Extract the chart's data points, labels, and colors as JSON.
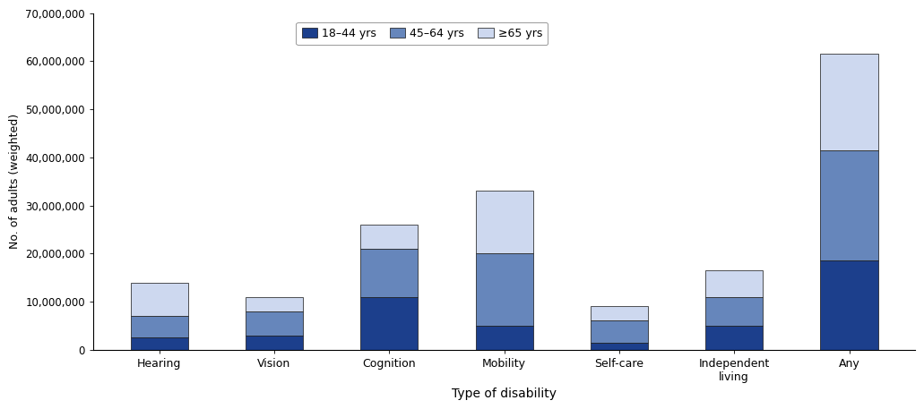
{
  "categories": [
    "Hearing",
    "Vision",
    "Cognition",
    "Mobility",
    "Self-care",
    "Independent\nliving",
    "Any"
  ],
  "age_groups": [
    "18–44 yrs",
    "45–64 yrs",
    "≥65 yrs"
  ],
  "values": {
    "18–44 yrs": [
      2500000,
      3000000,
      11000000,
      5000000,
      1500000,
      5000000,
      18500000
    ],
    "45–64 yrs": [
      4500000,
      5000000,
      10000000,
      15000000,
      4500000,
      6000000,
      23000000
    ],
    "≥65 yrs": [
      7000000,
      3000000,
      5000000,
      13000000,
      3000000,
      5500000,
      20000000
    ]
  },
  "colors": {
    "18–44 yrs": "#1c3f8c",
    "45–64 yrs": "#6686bb",
    "≥65 yrs": "#cdd8ef"
  },
  "ylabel": "No. of adults (weighted)",
  "xlabel": "Type of disability",
  "ylim": [
    0,
    70000000
  ],
  "yticks": [
    0,
    10000000,
    20000000,
    30000000,
    40000000,
    50000000,
    60000000,
    70000000
  ],
  "bar_width": 0.5,
  "edgecolor": "#111111",
  "linewidth": 0.5,
  "figsize": [
    10.31,
    4.57
  ],
  "dpi": 100
}
